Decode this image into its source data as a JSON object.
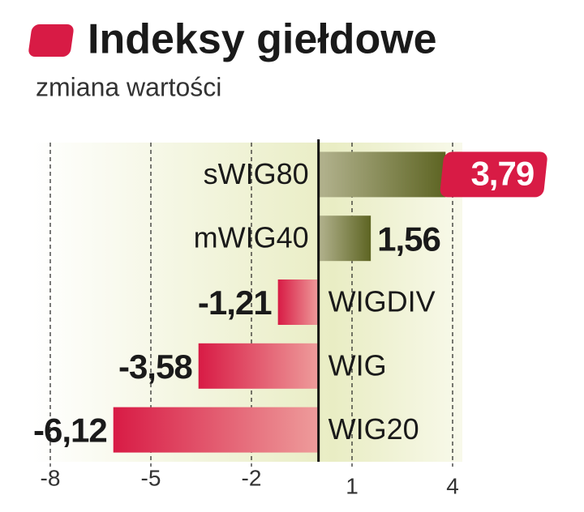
{
  "chart_data": {
    "type": "hbar",
    "title": "Indeksy giełdowe",
    "subtitle": "zmiana wartości",
    "categories": [
      "sWIG80",
      "mWIG40",
      "WIGDIV",
      "WIG",
      "WIG20"
    ],
    "values": [
      3.79,
      1.56,
      -1.21,
      -3.58,
      -6.12
    ],
    "value_labels": [
      "3,79",
      "1,56",
      "-1,21",
      "-3,58",
      "-6,12"
    ],
    "positive_color": "#5d6422",
    "negative_color": "#d81b45",
    "highlight_index": 0,
    "xlim": [
      -8,
      4
    ],
    "xticks": [
      -8,
      -5,
      -2,
      1,
      4
    ],
    "grid": true
  }
}
